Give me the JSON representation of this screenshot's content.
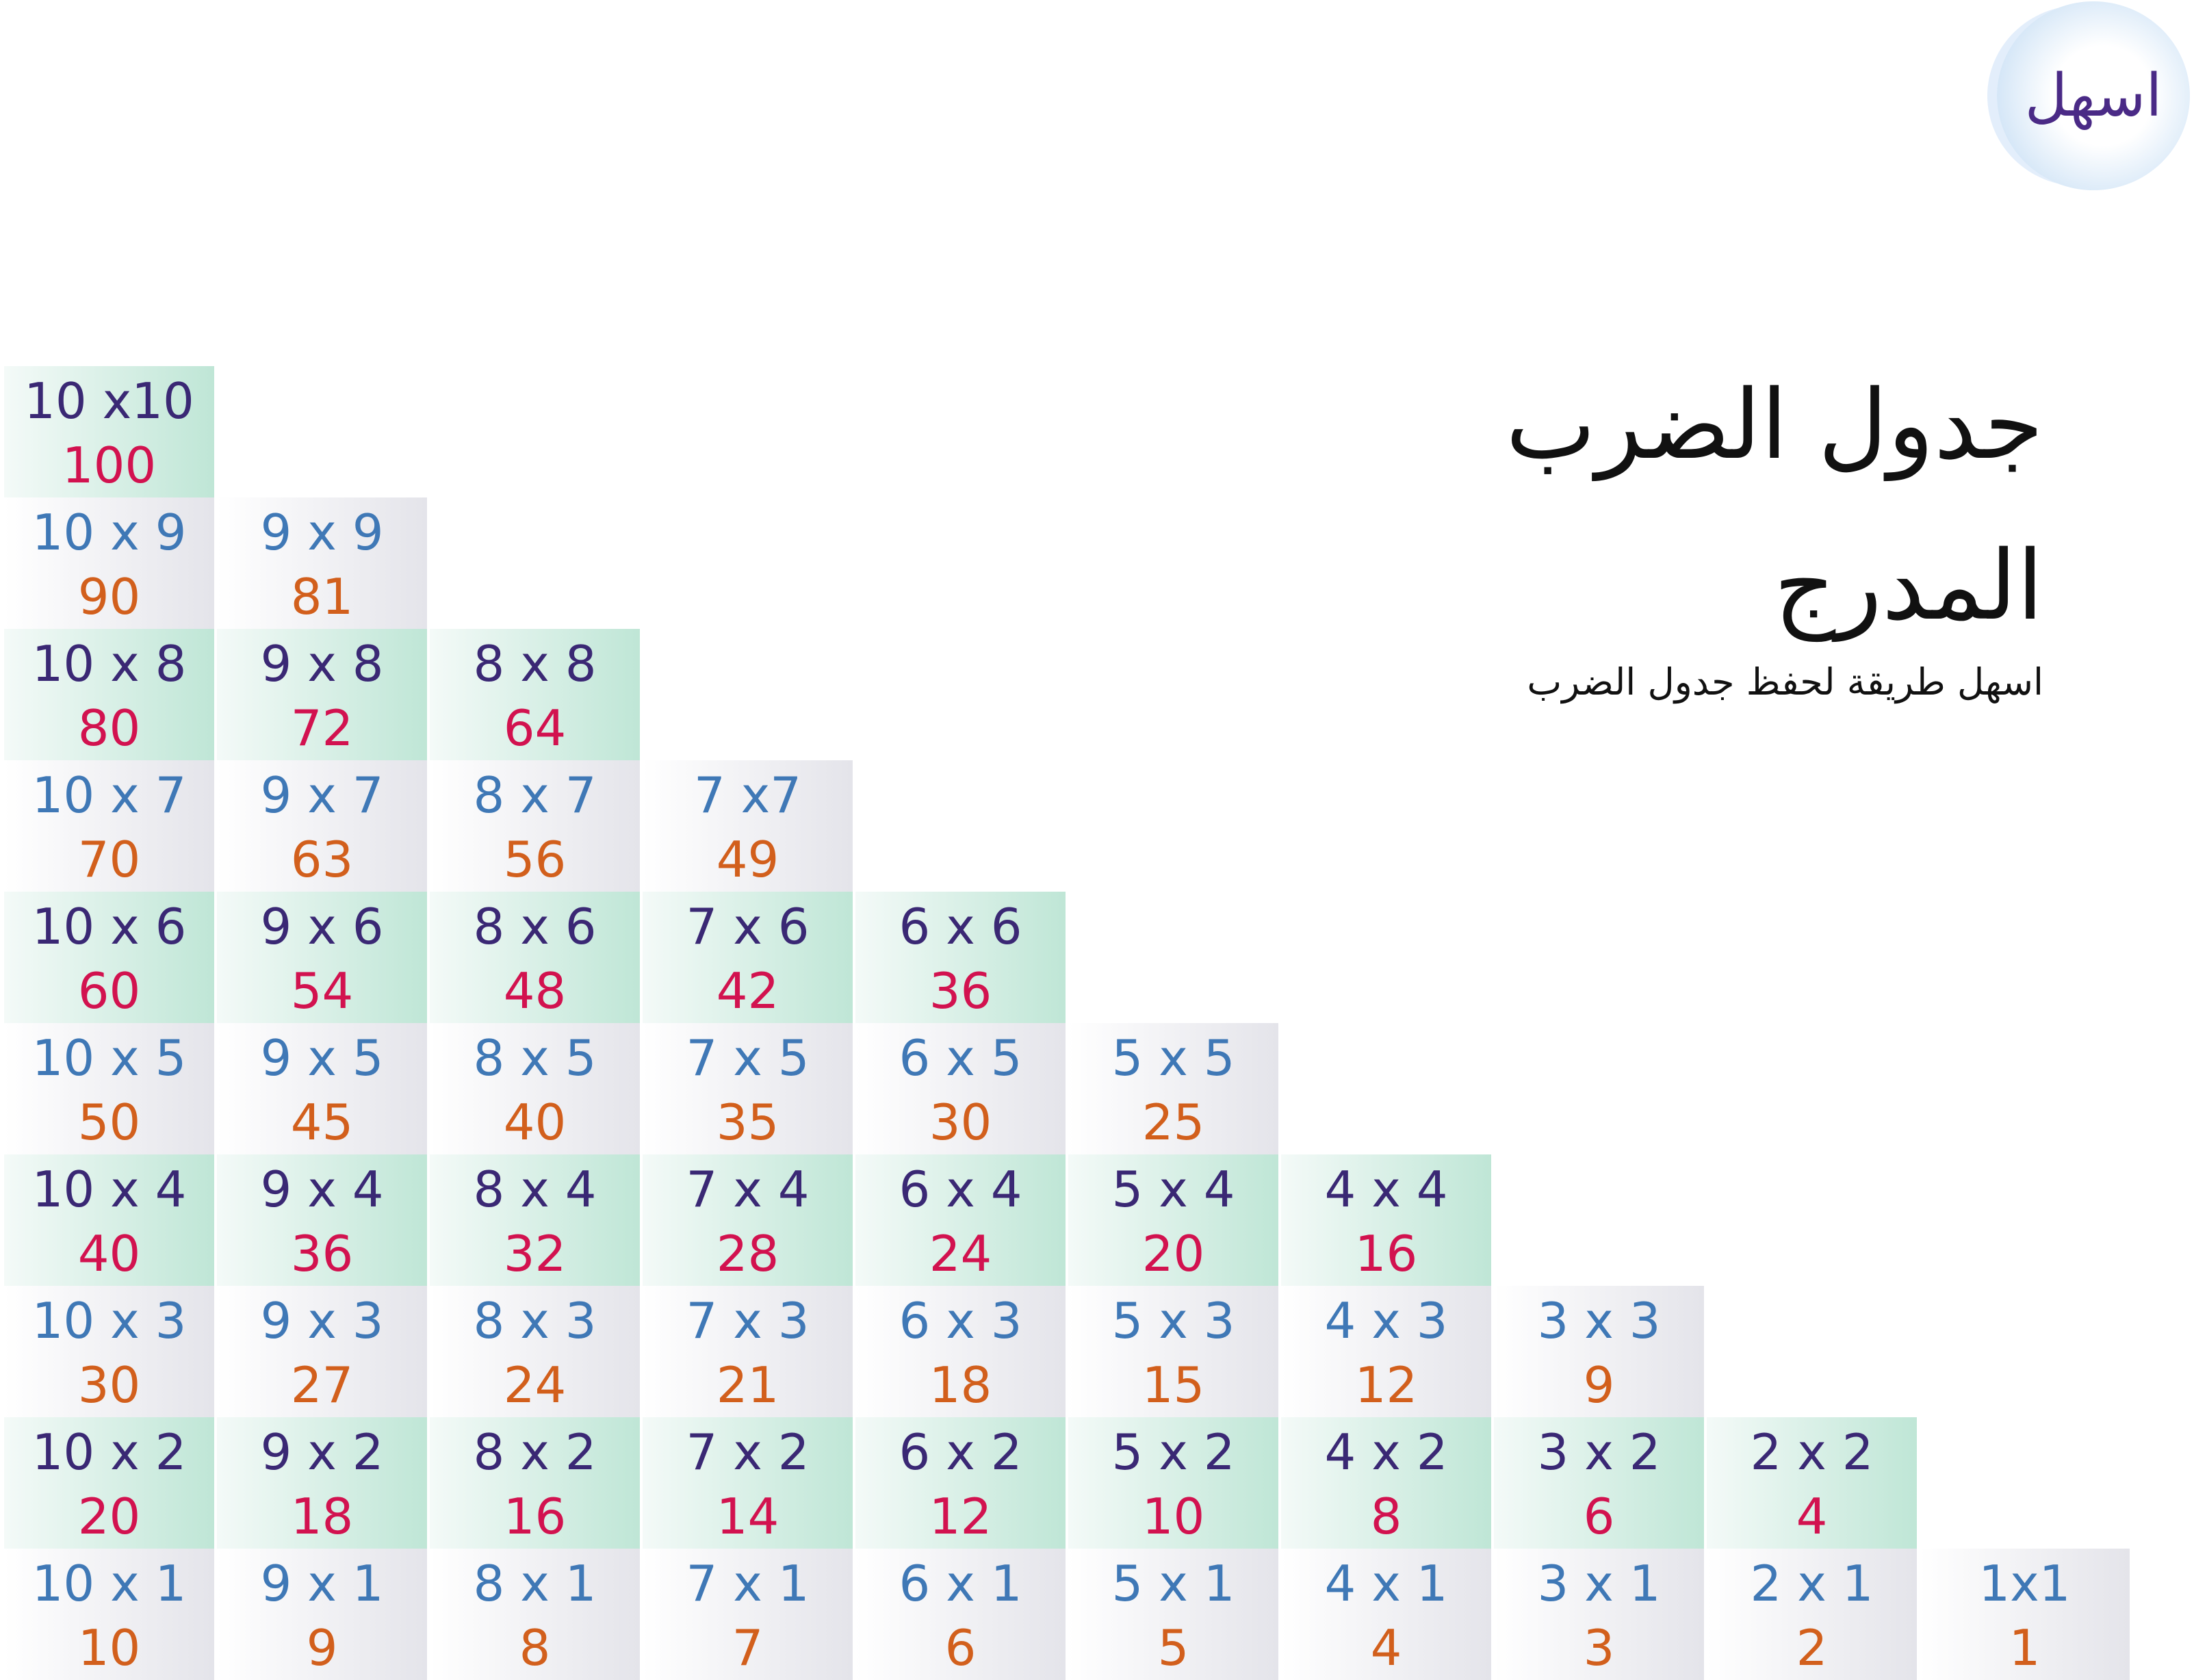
{
  "logo": "اسهل",
  "title": {
    "line1": "جدول الضرب",
    "line2": "المدرج"
  },
  "subtitle": "اسهل طريقة لحفظ جدول الضرب",
  "columns": [
    {
      "cells": [
        {
          "label": "10 x10",
          "value": 100
        },
        {
          "label": "10 x 9",
          "value": 90
        },
        {
          "label": "10 x 8",
          "value": 80
        },
        {
          "label": "10 x 7",
          "value": 70
        },
        {
          "label": "10 x 6",
          "value": 60
        },
        {
          "label": "10 x 5",
          "value": 50
        },
        {
          "label": "10 x 4",
          "value": 40
        },
        {
          "label": "10 x 3",
          "value": 30
        },
        {
          "label": "10 x 2",
          "value": 20
        },
        {
          "label": "10 x 1",
          "value": 10
        }
      ]
    },
    {
      "cells": [
        {
          "label": "9 x 9",
          "value": 81
        },
        {
          "label": "9 x 8",
          "value": 72
        },
        {
          "label": "9 x 7",
          "value": 63
        },
        {
          "label": "9 x 6",
          "value": 54
        },
        {
          "label": "9 x 5",
          "value": 45
        },
        {
          "label": "9 x 4",
          "value": 36
        },
        {
          "label": "9 x 3",
          "value": 27
        },
        {
          "label": "9 x 2",
          "value": 18
        },
        {
          "label": "9 x 1",
          "value": 9
        }
      ]
    },
    {
      "cells": [
        {
          "label": "8 x 8",
          "value": 64
        },
        {
          "label": "8 x 7",
          "value": 56
        },
        {
          "label": "8 x 6",
          "value": 48
        },
        {
          "label": "8 x 5",
          "value": 40
        },
        {
          "label": "8 x 4",
          "value": 32
        },
        {
          "label": "8 x 3",
          "value": 24
        },
        {
          "label": "8 x 2",
          "value": 16
        },
        {
          "label": "8 x 1",
          "value": 8
        }
      ]
    },
    {
      "cells": [
        {
          "label": "7 x7",
          "value": 49
        },
        {
          "label": "7 x 6",
          "value": 42
        },
        {
          "label": "7 x 5",
          "value": 35
        },
        {
          "label": "7 x 4",
          "value": 28
        },
        {
          "label": "7 x 3",
          "value": 21
        },
        {
          "label": "7 x 2",
          "value": 14
        },
        {
          "label": "7 x 1",
          "value": 7
        }
      ]
    },
    {
      "cells": [
        {
          "label": "6 x 6",
          "value": 36
        },
        {
          "label": "6 x 5",
          "value": 30
        },
        {
          "label": "6 x 4",
          "value": 24
        },
        {
          "label": "6 x 3",
          "value": 18
        },
        {
          "label": "6 x 2",
          "value": 12
        },
        {
          "label": "6 x 1",
          "value": 6
        }
      ]
    },
    {
      "cells": [
        {
          "label": "5 x 5",
          "value": 25
        },
        {
          "label": "5 x 4",
          "value": 20
        },
        {
          "label": "5 x 3",
          "value": 15
        },
        {
          "label": "5 x 2",
          "value": 10
        },
        {
          "label": "5 x 1",
          "value": 5
        }
      ]
    },
    {
      "cells": [
        {
          "label": "4 x 4",
          "value": 16
        },
        {
          "label": "4 x 3",
          "value": 12
        },
        {
          "label": "4 x 2",
          "value": 8
        },
        {
          "label": "4 x 1",
          "value": 4
        }
      ]
    },
    {
      "cells": [
        {
          "label": "3 x 3",
          "value": 9
        },
        {
          "label": "3 x 2",
          "value": 6
        },
        {
          "label": "3 x 1",
          "value": 3
        }
      ]
    },
    {
      "cells": [
        {
          "label": "2 x 2",
          "value": 4
        },
        {
          "label": "2 x 1",
          "value": 2
        }
      ]
    },
    {
      "cells": [
        {
          "label": "1x1",
          "value": 1
        }
      ]
    }
  ]
}
